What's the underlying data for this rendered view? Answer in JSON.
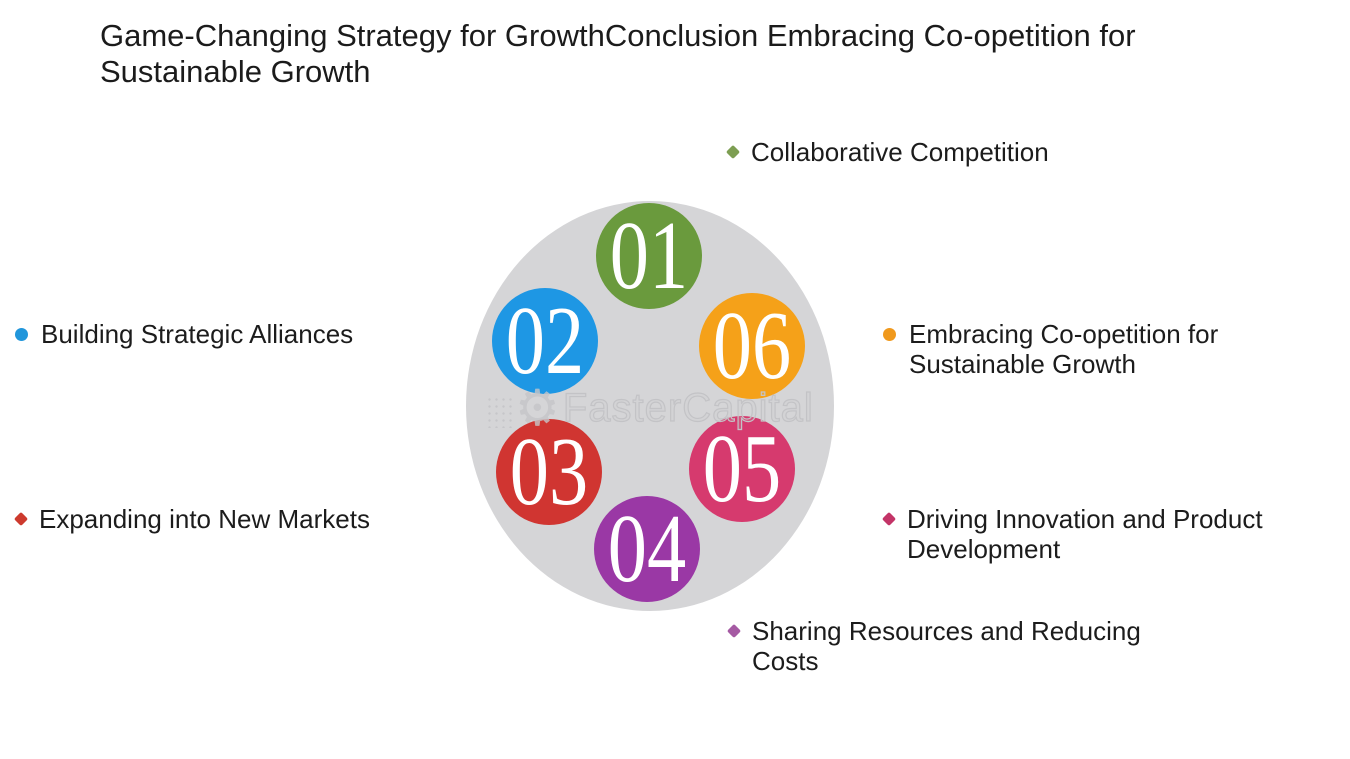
{
  "title": "Game-Changing Strategy for GrowthConclusion Embracing Co-opetition for Sustainable Growth",
  "watermark": {
    "text": "FasterCapital",
    "gear_icon": "⚙",
    "outline_color": "#c3c3c6"
  },
  "diagram": {
    "ellipse_color": "#d5d5d7",
    "number_text_color": "#ffffff",
    "circles": [
      {
        "number": "01",
        "color": "#6a9a3d",
        "position": "top"
      },
      {
        "number": "02",
        "color": "#1e97e4",
        "position": "upper-left"
      },
      {
        "number": "03",
        "color": "#d03531",
        "position": "lower-left"
      },
      {
        "number": "04",
        "color": "#9a38a5",
        "position": "bottom"
      },
      {
        "number": "05",
        "color": "#d63a6e",
        "position": "lower-right"
      },
      {
        "number": "06",
        "color": "#f5a119",
        "position": "upper-right"
      }
    ]
  },
  "labels": [
    {
      "text": "Collaborative Competition",
      "bullet_color": "#7d9e52",
      "bullet_shape": "diamond"
    },
    {
      "text": "Building Strategic Alliances",
      "bullet_color": "#2196db",
      "bullet_shape": "circle"
    },
    {
      "text": "Embracing Co-opetition for Sustainable Growth",
      "bullet_color": "#f0991d",
      "bullet_shape": "circle"
    },
    {
      "text": "Expanding into New Markets",
      "bullet_color": "#cd3a2e",
      "bullet_shape": "diamond"
    },
    {
      "text": "Driving Innovation and Product Development",
      "bullet_color": "#c33467",
      "bullet_shape": "diamond"
    },
    {
      "text": "Sharing Resources and Reducing Costs",
      "bullet_color": "#a55aa3",
      "bullet_shape": "diamond"
    }
  ]
}
